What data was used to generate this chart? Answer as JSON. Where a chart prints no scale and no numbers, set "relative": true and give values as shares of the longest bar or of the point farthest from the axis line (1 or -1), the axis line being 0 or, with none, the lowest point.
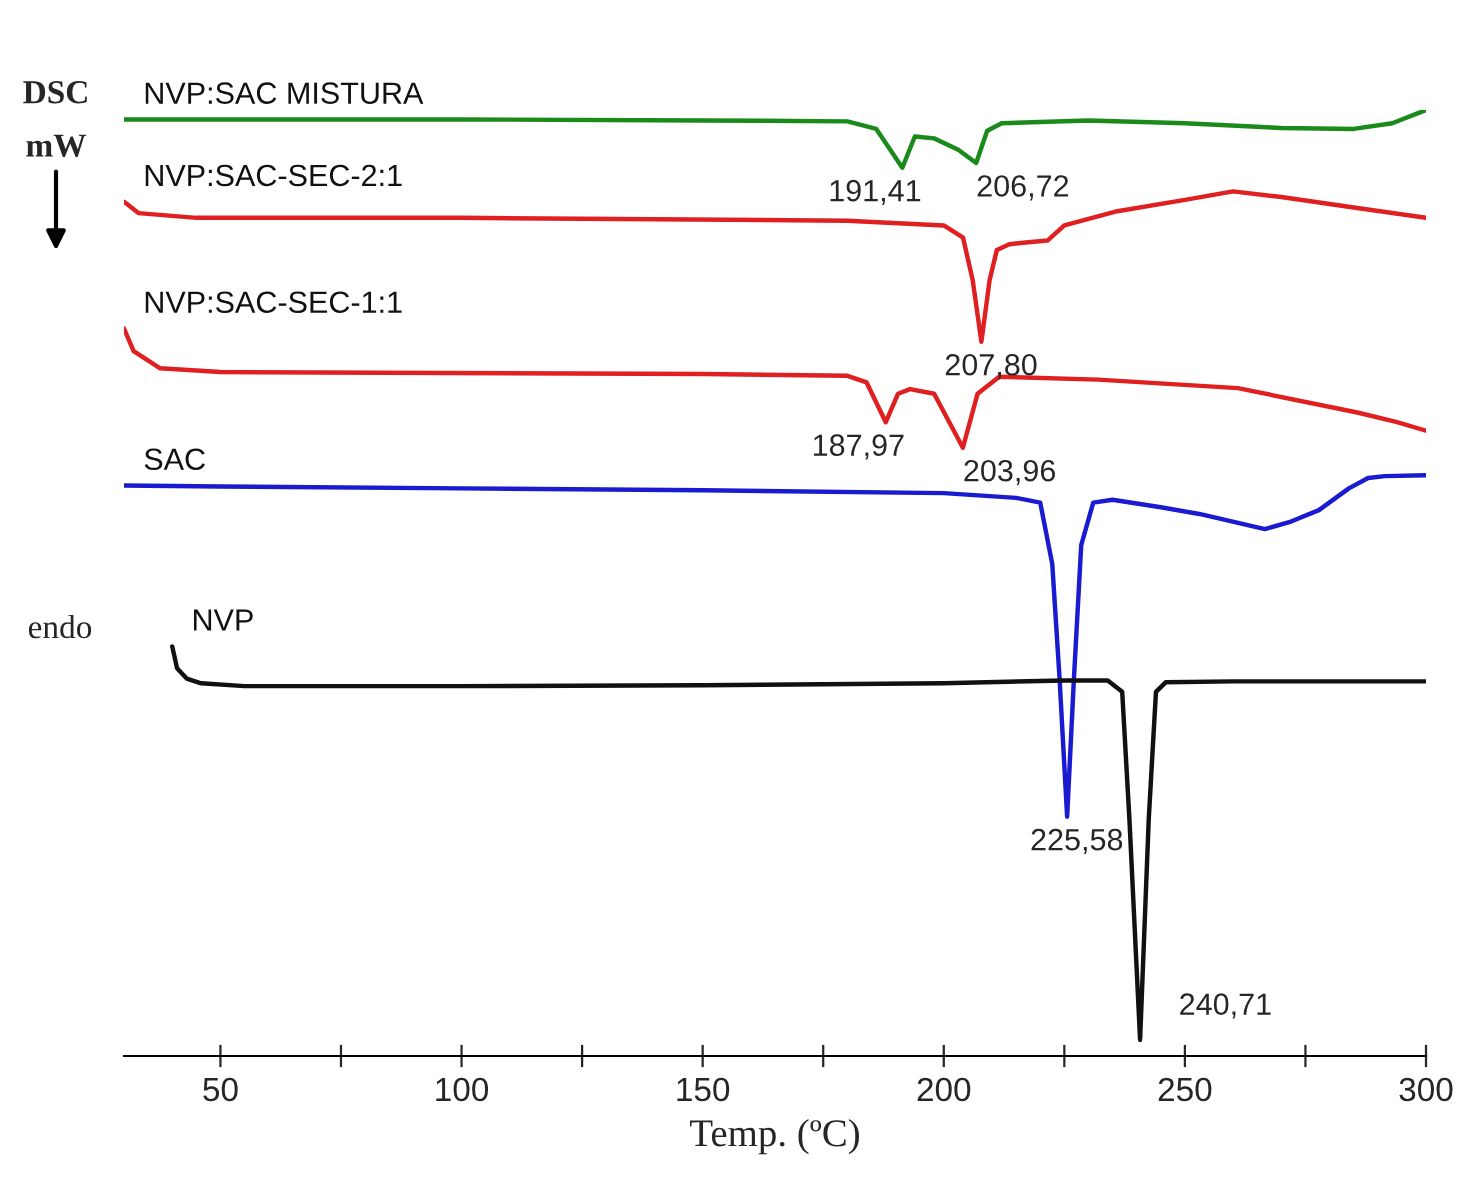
{
  "chart_data": {
    "type": "line",
    "relative": true,
    "xlabel": "Temp. (ºC)",
    "ylabel": "DSC\nmW",
    "xlim": [
      30,
      300
    ],
    "xticks": [
      50,
      {
        "value": 75,
        "label": null
      },
      100,
      {
        "value": 125,
        "label": null
      },
      150,
      {
        "value": 175,
        "label": null
      },
      200,
      {
        "value": 225,
        "label": null
      },
      250,
      {
        "value": 275,
        "label": null
      },
      300
    ],
    "grid": false,
    "legend": false,
    "marker": "none",
    "line_style": "solid",
    "tick_labels": "x",
    "series": [
      {
        "name": "NVP:SAC MISTURA",
        "color": "#1a8a1a",
        "x": [
          30,
          100,
          150,
          180,
          186,
          191.41,
          194,
          198,
          203,
          206.72,
          209,
          212,
          230,
          250,
          270,
          285,
          293,
          300
        ],
        "values": [
          0.99,
          0.99,
          0.989,
          0.988,
          0.98,
          0.939,
          0.972,
          0.97,
          0.958,
          0.944,
          0.978,
          0.986,
          0.989,
          0.986,
          0.981,
          0.98,
          0.986,
          1.0
        ]
      },
      {
        "name": "NVP:SAC-SEC-2:1",
        "color": "#e02020",
        "x": [
          30,
          33,
          45,
          100,
          180,
          200,
          204,
          206,
          207.8,
          209.5,
          211,
          213.6,
          217,
          221.5,
          225,
          236,
          250,
          260,
          270,
          285,
          300
        ],
        "values": [
          0.903,
          0.891,
          0.886,
          0.886,
          0.883,
          0.878,
          0.865,
          0.82,
          0.755,
          0.82,
          0.852,
          0.858,
          0.86,
          0.862,
          0.878,
          0.893,
          0.905,
          0.914,
          0.908,
          0.897,
          0.886
        ]
      },
      {
        "name": "NVP:SAC-SEC-1:1",
        "color": "#e02020",
        "x": [
          30,
          32,
          37.5,
          50,
          150,
          180,
          184,
          187.97,
          190.5,
          193,
          198,
          203.96,
          207,
          211.5,
          232,
          261,
          286,
          294,
          300
        ],
        "values": [
          0.769,
          0.745,
          0.727,
          0.723,
          0.721,
          0.719,
          0.712,
          0.67,
          0.7,
          0.705,
          0.7,
          0.643,
          0.7,
          0.718,
          0.715,
          0.706,
          0.68,
          0.67,
          0.661
        ]
      },
      {
        "name": "SAC",
        "color": "#1a1ad0",
        "x": [
          30,
          50,
          100,
          150,
          200,
          215,
          220,
          222.5,
          224,
          225.58,
          227,
          228.5,
          231,
          235,
          245,
          253,
          266.6,
          272,
          277.8,
          284,
          288,
          291.5,
          300
        ],
        "values": [
          0.603,
          0.602,
          0.6,
          0.598,
          0.595,
          0.59,
          0.585,
          0.52,
          0.4,
          0.253,
          0.4,
          0.54,
          0.585,
          0.588,
          0.58,
          0.573,
          0.557,
          0.565,
          0.577,
          0.6,
          0.611,
          0.613,
          0.614
        ]
      },
      {
        "name": "NVP",
        "color": "#111111",
        "x": [
          40,
          41,
          43,
          46,
          55,
          100,
          150,
          200,
          225,
          234,
          237,
          238.5,
          240.71,
          242.5,
          244,
          246,
          260,
          300
        ],
        "values": [
          0.433,
          0.41,
          0.399,
          0.394,
          0.391,
          0.391,
          0.392,
          0.394,
          0.397,
          0.397,
          0.385,
          0.25,
          0.017,
          0.25,
          0.385,
          0.395,
          0.396,
          0.396
        ]
      }
    ],
    "annotations": [
      {
        "text": "191,41",
        "x": 191.41,
        "y": 0.939
      },
      {
        "text": "206,72",
        "x": 206.72,
        "y": 0.944
      },
      {
        "text": "207,80",
        "x": 207.8,
        "y": 0.755
      },
      {
        "text": "187,97",
        "x": 187.97,
        "y": 0.67
      },
      {
        "text": "203,96",
        "x": 203.96,
        "y": 0.643
      },
      {
        "text": "225,58",
        "x": 225.58,
        "y": 0.253
      },
      {
        "text": "240,71",
        "x": 240.71,
        "y": 0.017
      },
      "endo"
    ]
  }
}
